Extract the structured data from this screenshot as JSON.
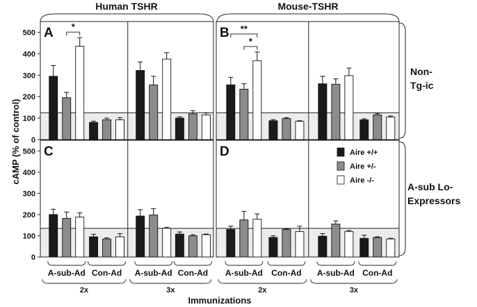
{
  "chart_data": {
    "type": "bar",
    "ylabel": "cAMP (% of control)",
    "xlabel": "Immunizations",
    "ylim": [
      0,
      550
    ],
    "yticks": [
      0,
      100,
      200,
      300,
      400,
      500
    ],
    "column_headers": [
      "Human TSHR",
      "Mouse-TSHR"
    ],
    "row_labels": [
      [
        "Non-",
        "Tg-ic"
      ],
      [
        "A-sub Lo-",
        "Expressors"
      ]
    ],
    "series": [
      {
        "name": "Aire +/+",
        "color": "#1a1a1a"
      },
      {
        "name": "Aire +/-",
        "color": "#8c8c8c"
      },
      {
        "name": "Aire -/-",
        "color": "#ffffff"
      }
    ],
    "conditions": [
      "A-sub-Ad",
      "Con-Ad"
    ],
    "immunization_groups": [
      "2x",
      "3x"
    ],
    "panels": [
      {
        "label": "A",
        "normal_range_upper": 125,
        "groups": [
          {
            "name": "2x",
            "clusters": [
              {
                "condition": "A-sub-Ad",
                "values": [
                  295,
                  195,
                  435
                ],
                "errors": [
                  50,
                  25,
                  40
                ]
              },
              {
                "condition": "Con-Ad",
                "values": [
                  80,
                  92,
                  92
                ],
                "errors": [
                  6,
                  8,
                  10
                ]
              }
            ]
          },
          {
            "name": "3x",
            "clusters": [
              {
                "condition": "A-sub-Ad",
                "values": [
                  322,
                  255,
                  375
                ],
                "errors": [
                  40,
                  40,
                  30
                ]
              },
              {
                "condition": "Con-Ad",
                "values": [
                  100,
                  120,
                  115
                ],
                "errors": [
                  6,
                  15,
                  10
                ]
              }
            ]
          }
        ],
        "significance": [
          {
            "label": "*",
            "from_bar": 1,
            "to_bar": 2
          }
        ]
      },
      {
        "label": "B",
        "normal_range_upper": 125,
        "groups": [
          {
            "name": "2x",
            "clusters": [
              {
                "condition": "A-sub-Ad",
                "values": [
                  255,
                  235,
                  368
                ],
                "errors": [
                  35,
                  25,
                  40
                ]
              },
              {
                "condition": "Con-Ad",
                "values": [
                  88,
                  98,
                  85
                ],
                "errors": [
                  5,
                  4,
                  3
                ]
              }
            ]
          },
          {
            "name": "3x",
            "clusters": [
              {
                "condition": "A-sub-Ad",
                "values": [
                  260,
                  258,
                  298
                ],
                "errors": [
                  35,
                  25,
                  35
                ]
              },
              {
                "condition": "Con-Ad",
                "values": [
                  92,
                  115,
                  105
                ],
                "errors": [
                  5,
                  6,
                  5
                ]
              }
            ]
          }
        ],
        "significance": [
          {
            "label": "**",
            "from_bar": 0,
            "to_bar": 2
          },
          {
            "label": "*",
            "from_bar": 1,
            "to_bar": 2
          }
        ]
      },
      {
        "label": "C",
        "normal_range_upper": 135,
        "groups": [
          {
            "name": "2x",
            "clusters": [
              {
                "condition": "A-sub-Ad",
                "values": [
                  200,
                  182,
                  188
                ],
                "errors": [
                  25,
                  30,
                  20
                ]
              },
              {
                "condition": "Con-Ad",
                "values": [
                  95,
                  85,
                  95
                ],
                "errors": [
                  12,
                  5,
                  15
                ]
              }
            ]
          },
          {
            "name": "3x",
            "clusters": [
              {
                "condition": "A-sub-Ad",
                "values": [
                  193,
                  198,
                  135
                ],
                "errors": [
                  30,
                  30,
                  5
                ]
              },
              {
                "condition": "Con-Ad",
                "values": [
                  108,
                  100,
                  105
                ],
                "errors": [
                  10,
                  5,
                  3
                ]
              }
            ]
          }
        ],
        "significance": []
      },
      {
        "label": "D",
        "normal_range_upper": 135,
        "groups": [
          {
            "name": "2x",
            "clusters": [
              {
                "condition": "A-sub-Ad",
                "values": [
                  130,
                  175,
                  178
                ],
                "errors": [
                  15,
                  40,
                  25
                ]
              },
              {
                "condition": "Con-Ad",
                "values": [
                  92,
                  130,
                  120
                ],
                "errors": [
                  8,
                  3,
                  25
                ]
              }
            ]
          },
          {
            "name": "3x",
            "clusters": [
              {
                "condition": "A-sub-Ad",
                "values": [
                  98,
                  155,
                  120
                ],
                "errors": [
                  12,
                  15,
                  5
                ]
              },
              {
                "condition": "Con-Ad",
                "values": [
                  88,
                  92,
                  85
                ],
                "errors": [
                  15,
                  3,
                  3
                ]
              }
            ]
          }
        ],
        "significance": []
      }
    ]
  }
}
